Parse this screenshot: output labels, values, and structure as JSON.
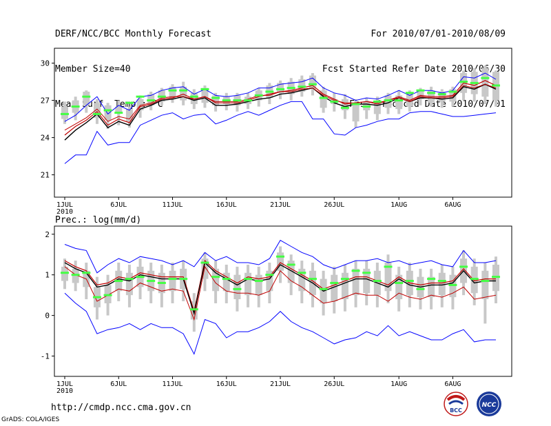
{
  "header": {
    "line1": "DERF/NCC/BCC Monthly Forecast",
    "line2": "Member Size=40",
    "line3": "Mean Surf. Temp.: °C",
    "right1": "For 2010/07/01-2010/08/09",
    "right2": "Fcst Started Refer Date 2010/06/30",
    "right3": "Fcst Produced Date 2010/07/01"
  },
  "prec_title": "Prec.: log(mm/d)",
  "footer": {
    "url": "http://cmdp.ncc.cma.gov.cn",
    "credit": "GrADS: COLA/IGES"
  },
  "logos": {
    "left": "BCC",
    "right": "NCC"
  },
  "colors": {
    "box": "#c8c8c8",
    "median": "#44ff44",
    "max": "#0000ff",
    "mean": "#000000",
    "inner": "#c00000"
  },
  "chart_data": [
    {
      "type": "line",
      "title": "Mean Surf. Temp.: °C",
      "x_ticks": [
        "1JUL",
        "6JUL",
        "11JUL",
        "16JUL",
        "21JUL",
        "26JUL",
        "1AUG",
        "6AUG"
      ],
      "x_tick_days": [
        1,
        6,
        11,
        16,
        21,
        26,
        32,
        37
      ],
      "x_year_label": "2010",
      "ylim": [
        19.2,
        31.2
      ],
      "yticks": [
        21,
        24,
        27,
        30
      ],
      "days": 40,
      "series": [
        {
          "name": "max",
          "values": [
            25.3,
            25.8,
            26.6,
            27.3,
            25.9,
            26.6,
            26.2,
            27.3,
            27.4,
            27.8,
            28.0,
            28.1,
            27.5,
            27.9,
            27.4,
            27.3,
            27.4,
            27.6,
            28.0,
            28.0,
            28.3,
            28.4,
            28.5,
            28.8,
            28.0,
            27.6,
            27.4,
            27.0,
            27.2,
            27.1,
            27.4,
            27.8,
            27.4,
            27.8,
            27.8,
            27.6,
            27.8,
            28.9,
            28.8,
            29.2,
            28.7
          ]
        },
        {
          "name": "min",
          "values": [
            21.9,
            22.6,
            22.6,
            24.5,
            23.4,
            23.6,
            23.6,
            25.0,
            25.4,
            25.8,
            26.0,
            25.5,
            25.8,
            25.9,
            25.1,
            25.4,
            25.8,
            26.1,
            25.8,
            26.2,
            26.6,
            26.9,
            26.9,
            25.5,
            25.5,
            24.3,
            24.2,
            24.8,
            25.0,
            25.3,
            25.5,
            25.5,
            26.0,
            26.1,
            26.1,
            25.9,
            25.7,
            25.7,
            25.8,
            25.9,
            26.0
          ]
        },
        {
          "name": "mean_upper",
          "values": [
            24.2,
            24.9,
            25.4,
            26.1,
            25.0,
            25.5,
            25.2,
            26.5,
            26.7,
            27.1,
            27.2,
            27.5,
            27.1,
            27.3,
            26.8,
            26.8,
            26.8,
            27.0,
            27.3,
            27.5,
            27.7,
            27.8,
            28.0,
            28.2,
            27.5,
            27.1,
            26.7,
            26.8,
            26.9,
            26.8,
            27.0,
            27.3,
            27.0,
            27.4,
            27.3,
            27.3,
            27.4,
            28.4,
            28.2,
            28.6,
            28.2
          ]
        },
        {
          "name": "mean_lower",
          "values": [
            23.8,
            24.6,
            25.2,
            25.9,
            24.8,
            25.3,
            25.0,
            26.3,
            26.6,
            27.0,
            27.1,
            27.3,
            27.0,
            27.2,
            26.6,
            26.6,
            26.7,
            26.9,
            27.1,
            27.2,
            27.5,
            27.6,
            27.8,
            28.0,
            27.3,
            26.8,
            26.5,
            26.7,
            26.7,
            26.6,
            26.8,
            27.2,
            26.9,
            27.2,
            27.2,
            27.1,
            27.2,
            28.1,
            27.9,
            28.3,
            27.9
          ]
        },
        {
          "name": "inner_red",
          "values": [
            24.6,
            25.1,
            25.6,
            26.3,
            25.3,
            25.7,
            25.5,
            26.6,
            26.8,
            27.2,
            27.3,
            27.3,
            27.1,
            27.3,
            26.9,
            26.9,
            26.9,
            27.1,
            27.4,
            27.4,
            27.7,
            27.7,
            27.9,
            28.0,
            27.4,
            27.0,
            26.8,
            26.8,
            26.9,
            26.7,
            27.0,
            27.2,
            26.9,
            27.3,
            27.2,
            27.2,
            27.3,
            28.2,
            28.0,
            28.3,
            28.0
          ]
        }
      ],
      "box_q": [
        [
          25.5,
          26.5
        ],
        [
          26.0,
          27.0
        ],
        [
          26.6,
          27.7
        ],
        [
          25.6,
          26.8
        ],
        [
          25.4,
          26.6
        ],
        [
          26.0,
          26.5
        ],
        [
          25.3,
          26.3
        ],
        [
          26.2,
          27.1
        ],
        [
          26.6,
          27.5
        ],
        [
          26.9,
          27.8
        ],
        [
          27.2,
          28.1
        ],
        [
          27.0,
          28.1
        ],
        [
          26.7,
          27.6
        ],
        [
          26.8,
          28.0
        ],
        [
          26.6,
          27.4
        ],
        [
          26.7,
          27.3
        ],
        [
          26.6,
          27.4
        ],
        [
          26.7,
          27.3
        ],
        [
          27.0,
          27.8
        ],
        [
          27.2,
          28.2
        ],
        [
          27.6,
          28.4
        ],
        [
          27.5,
          28.5
        ],
        [
          27.7,
          28.7
        ],
        [
          27.9,
          29.0
        ],
        [
          26.4,
          27.8
        ],
        [
          26.7,
          27.1
        ],
        [
          26.2,
          27.1
        ],
        [
          25.3,
          26.8
        ],
        [
          26.2,
          26.9
        ],
        [
          25.9,
          27.0
        ],
        [
          26.4,
          27.4
        ],
        [
          26.3,
          27.4
        ],
        [
          26.5,
          27.6
        ],
        [
          27.1,
          27.8
        ],
        [
          26.8,
          27.8
        ],
        [
          26.9,
          27.7
        ],
        [
          26.9,
          27.9
        ],
        [
          27.6,
          29.2
        ],
        [
          27.5,
          29.3
        ],
        [
          27.3,
          29.6
        ],
        [
          27.0,
          29.3
        ]
      ],
      "box_wh": [
        [
          25.1,
          26.9
        ],
        [
          25.4,
          27.3
        ],
        [
          26.0,
          27.8
        ],
        [
          25.1,
          27.1
        ],
        [
          24.7,
          26.8
        ],
        [
          25.0,
          27.0
        ],
        [
          24.8,
          26.5
        ],
        [
          25.6,
          27.4
        ],
        [
          26.2,
          27.7
        ],
        [
          26.6,
          28.0
        ],
        [
          26.8,
          28.3
        ],
        [
          26.6,
          28.5
        ],
        [
          26.3,
          27.9
        ],
        [
          26.4,
          28.2
        ],
        [
          26.1,
          27.6
        ],
        [
          26.2,
          27.6
        ],
        [
          26.1,
          27.6
        ],
        [
          26.3,
          27.6
        ],
        [
          26.5,
          28.0
        ],
        [
          26.7,
          28.4
        ],
        [
          27.1,
          28.6
        ],
        [
          27.0,
          28.8
        ],
        [
          27.3,
          29.0
        ],
        [
          27.4,
          29.2
        ],
        [
          26.0,
          28.1
        ],
        [
          26.1,
          27.6
        ],
        [
          25.5,
          27.5
        ],
        [
          24.8,
          27.1
        ],
        [
          25.5,
          27.2
        ],
        [
          25.4,
          27.3
        ],
        [
          25.9,
          27.6
        ],
        [
          25.9,
          27.8
        ],
        [
          26.1,
          27.8
        ],
        [
          26.6,
          28.0
        ],
        [
          26.5,
          28.1
        ],
        [
          26.4,
          27.9
        ],
        [
          26.5,
          28.1
        ],
        [
          27.0,
          29.4
        ],
        [
          26.9,
          29.6
        ],
        [
          26.7,
          29.8
        ],
        [
          26.5,
          29.4
        ]
      ],
      "medians": [
        25.9,
        26.5,
        27.3,
        25.9,
        26.2,
        26.0,
        26.8,
        27.3,
        27.0,
        27.3,
        27.8,
        27.8,
        27.3,
        27.9,
        27.2,
        27.0,
        27.0,
        27.0,
        27.4,
        27.7,
        27.9,
        28.0,
        28.1,
        28.3,
        27.2,
        26.9,
        26.4,
        26.7,
        26.5,
        26.9,
        27.0,
        27.0,
        27.6,
        27.8,
        27.6,
        27.5,
        27.7,
        28.5,
        28.4,
        28.8,
        28.2
      ]
    },
    {
      "type": "line",
      "title": "Prec.: log(mm/d)",
      "x_ticks": [
        "1JUL",
        "6JUL",
        "11JUL",
        "16JUL",
        "21JUL",
        "26JUL",
        "1AUG",
        "6AUG"
      ],
      "x_tick_days": [
        1,
        6,
        11,
        16,
        21,
        26,
        32,
        37
      ],
      "x_year_label": "2010",
      "ylim": [
        -1.5,
        2.2
      ],
      "yticks": [
        -1,
        0,
        1,
        2
      ],
      "days": 40,
      "series": [
        {
          "name": "max",
          "values": [
            1.75,
            1.65,
            1.6,
            1.05,
            1.25,
            1.4,
            1.3,
            1.45,
            1.4,
            1.35,
            1.25,
            1.35,
            1.2,
            1.55,
            1.35,
            1.45,
            1.3,
            1.3,
            1.25,
            1.4,
            1.85,
            1.7,
            1.55,
            1.45,
            1.25,
            1.15,
            1.25,
            1.35,
            1.35,
            1.4,
            1.3,
            1.35,
            1.25,
            1.3,
            1.35,
            1.25,
            1.2,
            1.6,
            1.3,
            1.3,
            1.35
          ]
        },
        {
          "name": "min",
          "values": [
            0.55,
            0.3,
            0.1,
            -0.45,
            -0.35,
            -0.3,
            -0.2,
            -0.35,
            -0.2,
            -0.3,
            -0.3,
            -0.45,
            -0.95,
            -0.1,
            -0.2,
            -0.55,
            -0.4,
            -0.4,
            -0.3,
            -0.15,
            0.1,
            -0.15,
            -0.3,
            -0.4,
            -0.55,
            -0.7,
            -0.6,
            -0.55,
            -0.4,
            -0.5,
            -0.25,
            -0.5,
            -0.4,
            -0.5,
            -0.6,
            -0.6,
            -0.45,
            -0.35,
            -0.65,
            -0.6,
            -0.6
          ]
        },
        {
          "name": "mean_upper",
          "values": [
            1.35,
            1.2,
            1.1,
            0.75,
            0.8,
            0.95,
            0.9,
            1.05,
            1.0,
            0.95,
            0.95,
            0.95,
            0.1,
            1.35,
            1.1,
            0.95,
            0.8,
            0.95,
            0.9,
            0.95,
            1.3,
            1.15,
            1.0,
            0.85,
            0.65,
            0.75,
            0.85,
            0.95,
            0.95,
            0.85,
            0.75,
            0.95,
            0.8,
            0.75,
            0.8,
            0.8,
            0.85,
            1.15,
            0.85,
            0.9,
            0.9
          ]
        },
        {
          "name": "mean_lower",
          "values": [
            1.3,
            1.15,
            1.05,
            0.7,
            0.75,
            0.9,
            0.85,
            1.0,
            0.95,
            0.9,
            0.9,
            0.9,
            0.05,
            1.3,
            1.05,
            0.9,
            0.75,
            0.9,
            0.85,
            0.9,
            1.25,
            1.1,
            0.95,
            0.8,
            0.6,
            0.7,
            0.8,
            0.9,
            0.9,
            0.8,
            0.7,
            0.9,
            0.75,
            0.7,
            0.75,
            0.75,
            0.8,
            1.1,
            0.8,
            0.85,
            0.85
          ]
        },
        {
          "name": "inner_red",
          "values": [
            1.2,
            1.0,
            0.9,
            0.35,
            0.5,
            0.65,
            0.6,
            0.8,
            0.7,
            0.6,
            0.65,
            0.6,
            -0.1,
            1.2,
            0.8,
            0.6,
            0.55,
            0.55,
            0.5,
            0.6,
            1.1,
            0.85,
            0.7,
            0.5,
            0.3,
            0.35,
            0.45,
            0.55,
            0.5,
            0.5,
            0.35,
            0.55,
            0.45,
            0.4,
            0.5,
            0.45,
            0.55,
            0.7,
            0.4,
            0.45,
            0.5
          ]
        }
      ],
      "box_q": [
        [
          0.85,
          1.2
        ],
        [
          0.8,
          1.15
        ],
        [
          0.7,
          1.1
        ],
        [
          0.2,
          0.7
        ],
        [
          0.3,
          0.75
        ],
        [
          0.6,
          1.1
        ],
        [
          0.5,
          1.05
        ],
        [
          0.7,
          1.2
        ],
        [
          0.6,
          1.1
        ],
        [
          0.55,
          1.05
        ],
        [
          0.6,
          1.1
        ],
        [
          0.65,
          1.15
        ],
        [
          -0.1,
          0.35
        ],
        [
          0.9,
          1.4
        ],
        [
          0.6,
          1.15
        ],
        [
          0.6,
          1.05
        ],
        [
          0.4,
          1.0
        ],
        [
          0.5,
          1.05
        ],
        [
          0.5,
          1.0
        ],
        [
          0.6,
          1.1
        ],
        [
          1.1,
          1.55
        ],
        [
          0.8,
          1.35
        ],
        [
          0.6,
          1.15
        ],
        [
          0.5,
          1.1
        ],
        [
          0.3,
          0.9
        ],
        [
          0.35,
          1.0
        ],
        [
          0.4,
          1.05
        ],
        [
          0.5,
          1.15
        ],
        [
          0.55,
          1.15
        ],
        [
          0.5,
          1.1
        ],
        [
          0.6,
          1.3
        ],
        [
          0.4,
          1.0
        ],
        [
          0.5,
          1.1
        ],
        [
          0.45,
          0.95
        ],
        [
          0.45,
          0.95
        ],
        [
          0.5,
          1.05
        ],
        [
          0.45,
          1.0
        ],
        [
          0.8,
          1.4
        ],
        [
          0.55,
          1.2
        ],
        [
          0.4,
          1.1
        ],
        [
          0.6,
          1.25
        ]
      ],
      "box_wh": [
        [
          0.65,
          1.4
        ],
        [
          0.6,
          1.35
        ],
        [
          0.4,
          1.3
        ],
        [
          -0.1,
          0.95
        ],
        [
          0.0,
          1.0
        ],
        [
          0.35,
          1.3
        ],
        [
          0.2,
          1.25
        ],
        [
          0.4,
          1.4
        ],
        [
          0.3,
          1.3
        ],
        [
          0.2,
          1.25
        ],
        [
          0.3,
          1.3
        ],
        [
          0.35,
          1.35
        ],
        [
          -0.4,
          0.55
        ],
        [
          0.6,
          1.55
        ],
        [
          0.3,
          1.35
        ],
        [
          0.3,
          1.25
        ],
        [
          0.1,
          1.2
        ],
        [
          0.2,
          1.25
        ],
        [
          0.2,
          1.2
        ],
        [
          0.3,
          1.3
        ],
        [
          0.8,
          1.7
        ],
        [
          0.5,
          1.5
        ],
        [
          0.3,
          1.35
        ],
        [
          0.2,
          1.3
        ],
        [
          0.0,
          1.1
        ],
        [
          0.05,
          1.2
        ],
        [
          0.1,
          1.25
        ],
        [
          0.2,
          1.35
        ],
        [
          0.25,
          1.35
        ],
        [
          0.2,
          1.3
        ],
        [
          0.3,
          1.5
        ],
        [
          0.1,
          1.2
        ],
        [
          0.2,
          1.3
        ],
        [
          0.15,
          1.15
        ],
        [
          0.15,
          1.15
        ],
        [
          0.2,
          1.25
        ],
        [
          0.15,
          1.2
        ],
        [
          0.5,
          1.6
        ],
        [
          0.25,
          1.4
        ],
        [
          -0.2,
          1.3
        ],
        [
          0.3,
          1.45
        ]
      ],
      "medians": [
        1.05,
        1.0,
        1.05,
        0.45,
        0.5,
        0.85,
        0.9,
        0.95,
        0.85,
        0.8,
        0.9,
        0.9,
        0.15,
        1.3,
        0.95,
        0.9,
        0.65,
        0.9,
        0.85,
        1.0,
        1.45,
        1.25,
        1.05,
        0.9,
        0.65,
        0.8,
        0.9,
        1.1,
        1.05,
        0.85,
        1.2,
        0.8,
        0.85,
        0.65,
        0.9,
        0.85,
        0.75,
        1.2,
        0.9,
        0.85,
        0.95
      ]
    }
  ]
}
